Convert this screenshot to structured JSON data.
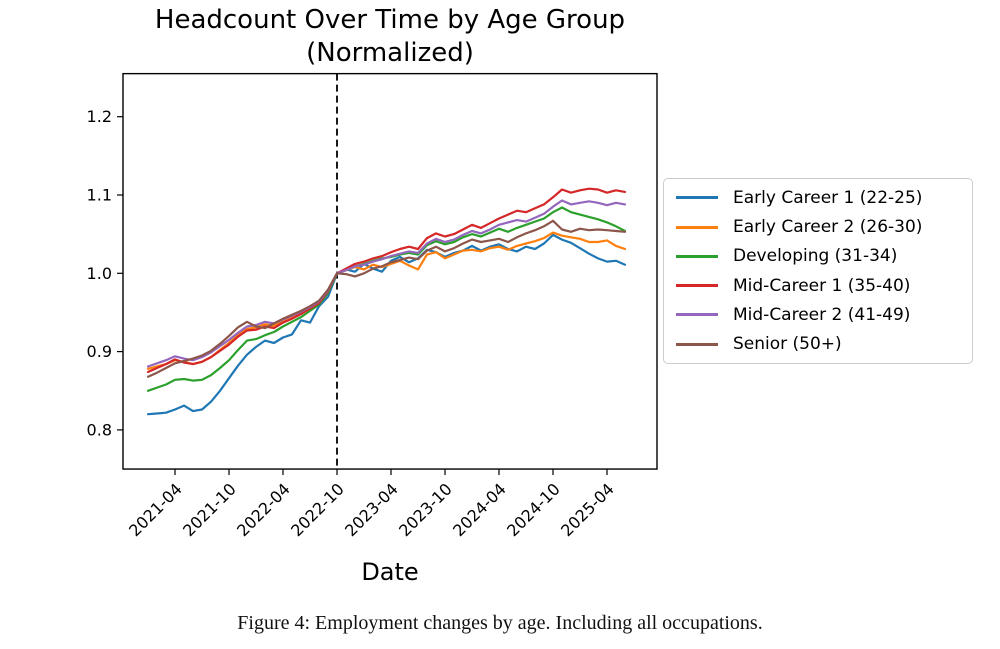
{
  "figure": {
    "title_line1": "Headcount Over Time by Age Group",
    "title_line2": "(Normalized)",
    "caption": "Figure 4: Employment changes by age. Including all occupations."
  },
  "chart_data": {
    "type": "line",
    "title": "Headcount Over Time by Age Group (Normalized)",
    "xlabel": "Date",
    "ylabel": "",
    "grid": false,
    "legend_position": "right",
    "ylim": [
      0.75,
      1.255
    ],
    "y_ticks": [
      0.8,
      0.9,
      1.0,
      1.1,
      1.2
    ],
    "x_tick_labels": [
      "2021-04",
      "2021-10",
      "2022-04",
      "2022-10",
      "2023-04",
      "2023-10",
      "2024-04",
      "2024-10",
      "2025-04"
    ],
    "annotations": [
      {
        "type": "vline",
        "x": "2022-10",
        "linestyle": "dashed",
        "color": "#000000"
      }
    ],
    "x": [
      "2021-01",
      "2021-02",
      "2021-03",
      "2021-04",
      "2021-05",
      "2021-06",
      "2021-07",
      "2021-08",
      "2021-09",
      "2021-10",
      "2021-11",
      "2021-12",
      "2022-01",
      "2022-02",
      "2022-03",
      "2022-04",
      "2022-05",
      "2022-06",
      "2022-07",
      "2022-08",
      "2022-09",
      "2022-10",
      "2022-11",
      "2022-12",
      "2023-01",
      "2023-02",
      "2023-03",
      "2023-04",
      "2023-05",
      "2023-06",
      "2023-07",
      "2023-08",
      "2023-09",
      "2023-10",
      "2023-11",
      "2023-12",
      "2024-01",
      "2024-02",
      "2024-03",
      "2024-04",
      "2024-05",
      "2024-06",
      "2024-07",
      "2024-08",
      "2024-09",
      "2024-10",
      "2024-11",
      "2024-12",
      "2025-01",
      "2025-02",
      "2025-03",
      "2025-04",
      "2025-05",
      "2025-06"
    ],
    "series": [
      {
        "name": "Early Career 1 (22-25)",
        "color": "#1f77b4",
        "values": [
          0.82,
          0.821,
          0.822,
          0.826,
          0.831,
          0.824,
          0.826,
          0.836,
          0.85,
          0.866,
          0.882,
          0.896,
          0.906,
          0.914,
          0.911,
          0.918,
          0.922,
          0.94,
          0.937,
          0.958,
          0.97,
          1.0,
          1.005,
          1.002,
          1.012,
          1.006,
          1.002,
          1.016,
          1.021,
          1.014,
          1.019,
          1.03,
          1.027,
          1.021,
          1.026,
          1.029,
          1.035,
          1.029,
          1.034,
          1.037,
          1.031,
          1.028,
          1.034,
          1.031,
          1.038,
          1.049,
          1.043,
          1.039,
          1.032,
          1.025,
          1.019,
          1.015,
          1.016,
          1.011
        ]
      },
      {
        "name": "Early Career 2 (26-30)",
        "color": "#ff7f0e",
        "values": [
          0.878,
          0.881,
          0.884,
          0.889,
          0.887,
          0.884,
          0.887,
          0.893,
          0.902,
          0.911,
          0.921,
          0.929,
          0.931,
          0.935,
          0.933,
          0.939,
          0.944,
          0.95,
          0.956,
          0.963,
          0.978,
          1.0,
          1.004,
          1.008,
          1.005,
          1.011,
          1.008,
          1.012,
          1.016,
          1.01,
          1.005,
          1.024,
          1.027,
          1.019,
          1.024,
          1.029,
          1.03,
          1.028,
          1.032,
          1.034,
          1.03,
          1.035,
          1.038,
          1.041,
          1.045,
          1.052,
          1.048,
          1.046,
          1.044,
          1.04,
          1.04,
          1.042,
          1.035,
          1.031
        ]
      },
      {
        "name": "Developing (31-34)",
        "color": "#2ca02c",
        "values": [
          0.85,
          0.854,
          0.858,
          0.864,
          0.865,
          0.863,
          0.864,
          0.87,
          0.879,
          0.889,
          0.902,
          0.914,
          0.916,
          0.921,
          0.925,
          0.932,
          0.938,
          0.944,
          0.952,
          0.96,
          0.975,
          1.0,
          1.004,
          1.009,
          1.012,
          1.016,
          1.019,
          1.021,
          1.024,
          1.026,
          1.024,
          1.036,
          1.041,
          1.037,
          1.04,
          1.046,
          1.05,
          1.047,
          1.052,
          1.057,
          1.053,
          1.058,
          1.062,
          1.066,
          1.07,
          1.078,
          1.084,
          1.078,
          1.075,
          1.072,
          1.069,
          1.065,
          1.06,
          1.054
        ]
      },
      {
        "name": "Mid-Career 1 (35-40)",
        "color": "#d62728",
        "values": [
          0.874,
          0.879,
          0.884,
          0.89,
          0.886,
          0.884,
          0.887,
          0.893,
          0.901,
          0.909,
          0.919,
          0.927,
          0.928,
          0.932,
          0.93,
          0.937,
          0.942,
          0.948,
          0.955,
          0.962,
          0.977,
          1.0,
          1.006,
          1.012,
          1.015,
          1.019,
          1.022,
          1.027,
          1.031,
          1.034,
          1.031,
          1.045,
          1.051,
          1.047,
          1.05,
          1.056,
          1.062,
          1.058,
          1.064,
          1.07,
          1.075,
          1.08,
          1.078,
          1.083,
          1.088,
          1.097,
          1.107,
          1.103,
          1.106,
          1.108,
          1.107,
          1.103,
          1.106,
          1.104
        ]
      },
      {
        "name": "Mid-Career 2 (41-49)",
        "color": "#9467bd",
        "values": [
          0.881,
          0.885,
          0.889,
          0.894,
          0.891,
          0.889,
          0.893,
          0.899,
          0.907,
          0.915,
          0.924,
          0.932,
          0.934,
          0.938,
          0.936,
          0.941,
          0.946,
          0.951,
          0.957,
          0.964,
          0.978,
          1.0,
          1.004,
          1.009,
          1.011,
          1.015,
          1.018,
          1.022,
          1.025,
          1.028,
          1.026,
          1.038,
          1.044,
          1.04,
          1.043,
          1.049,
          1.054,
          1.051,
          1.056,
          1.062,
          1.065,
          1.068,
          1.066,
          1.071,
          1.076,
          1.085,
          1.093,
          1.088,
          1.09,
          1.092,
          1.09,
          1.087,
          1.09,
          1.088
        ]
      },
      {
        "name": "Senior (50+)",
        "color": "#8c564b",
        "values": [
          0.868,
          0.873,
          0.879,
          0.885,
          0.888,
          0.891,
          0.895,
          0.901,
          0.91,
          0.92,
          0.931,
          0.938,
          0.932,
          0.93,
          0.936,
          0.942,
          0.947,
          0.952,
          0.958,
          0.965,
          0.979,
          1.0,
          0.999,
          0.996,
          1.0,
          1.006,
          1.009,
          1.014,
          1.017,
          1.02,
          1.018,
          1.029,
          1.034,
          1.028,
          1.032,
          1.038,
          1.043,
          1.04,
          1.042,
          1.044,
          1.04,
          1.046,
          1.051,
          1.055,
          1.06,
          1.067,
          1.056,
          1.053,
          1.057,
          1.055,
          1.056,
          1.055,
          1.054,
          1.053
        ]
      }
    ]
  }
}
